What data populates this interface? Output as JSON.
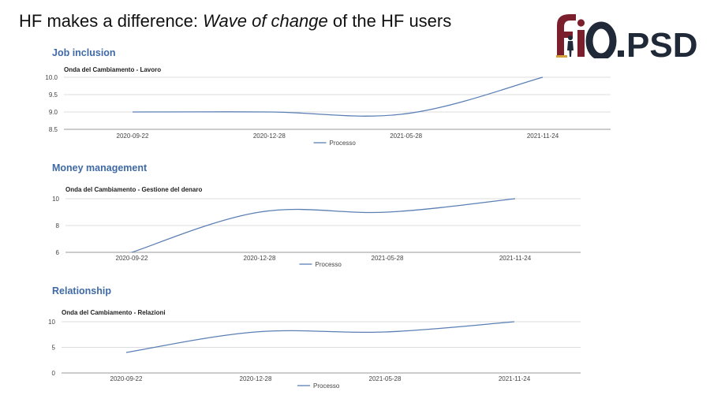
{
  "slide": {
    "title_prefix": "HF makes a difference: ",
    "title_italic": "Wave of change",
    "title_suffix": " of the HF users"
  },
  "logo": {
    "text": "fiO.PSD",
    "colors": {
      "fio": "#7a1f2b",
      "psd": "#1f2937",
      "accent": "#d4a13a"
    }
  },
  "sections": [
    {
      "heading": "Job inclusion"
    },
    {
      "heading": "Money management"
    },
    {
      "heading": "Relationship"
    }
  ],
  "chart_data": [
    {
      "type": "line",
      "title": "Onda del Cambiamento - Lavoro",
      "categories": [
        "2020-09-22",
        "2020-12-28",
        "2021-05-28",
        "2021-11-24"
      ],
      "series": [
        {
          "name": "Processo",
          "values": [
            9.0,
            9.0,
            8.95,
            10.0
          ],
          "color": "#5b7fb5"
        }
      ],
      "ylim": [
        8.5,
        10.0
      ],
      "yticks": [
        "10.0",
        "9.5",
        "9.0",
        "8.5"
      ],
      "grid": true,
      "legend": "bottom"
    },
    {
      "type": "line",
      "title": "Onda del Cambiamento - Gestione del denaro",
      "categories": [
        "2020-09-22",
        "2020-12-28",
        "2021-05-28",
        "2021-11-24"
      ],
      "series": [
        {
          "name": "Processo",
          "values": [
            6,
            9,
            9,
            10
          ],
          "color": "#5b7fb5"
        }
      ],
      "ylim": [
        6,
        10
      ],
      "yticks": [
        "10",
        "8",
        "6"
      ],
      "grid": true,
      "legend": "bottom"
    },
    {
      "type": "line",
      "title": "Onda del Cambiamento - Relazioni",
      "categories": [
        "2020-09-22",
        "2020-12-28",
        "2021-05-28",
        "2021-11-24"
      ],
      "series": [
        {
          "name": "Processo",
          "values": [
            4,
            8,
            8,
            10
          ],
          "color": "#5b7fb5"
        }
      ],
      "ylim": [
        0,
        10
      ],
      "yticks": [
        "10",
        "5",
        "0"
      ],
      "grid": true,
      "legend": "bottom"
    }
  ]
}
